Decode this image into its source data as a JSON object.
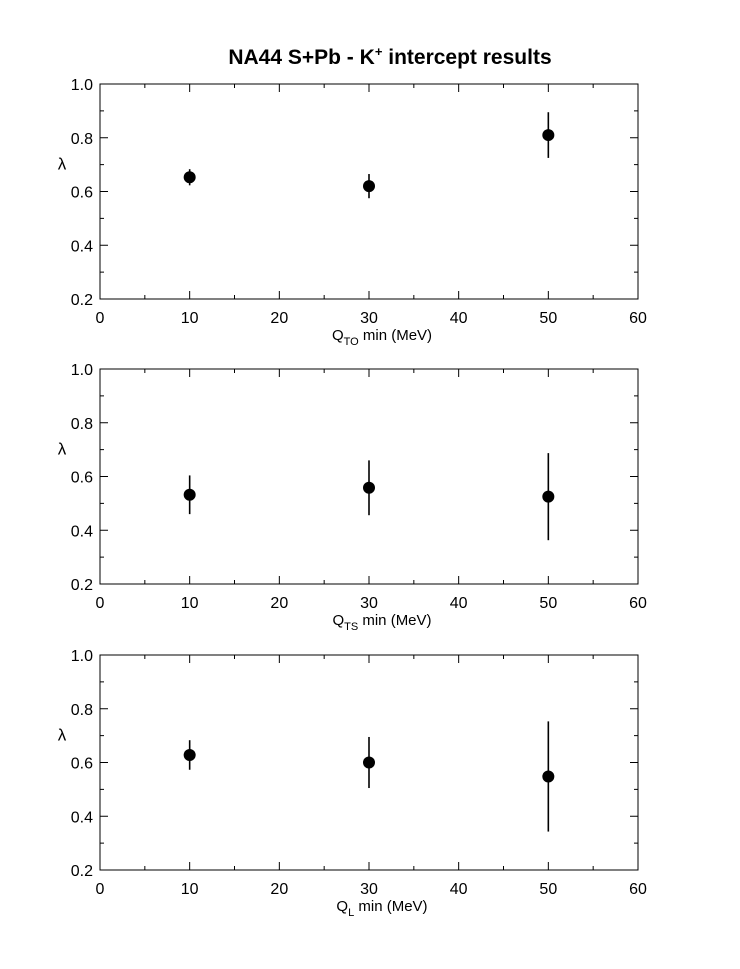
{
  "title": {
    "text": "NA44 S+Pb - K",
    "sup": "+",
    "suffix": " intercept results"
  },
  "chart_data": [
    {
      "type": "scatter",
      "xlabel": {
        "main": "Q",
        "sub": "TO",
        "rest": " min (MeV)"
      },
      "ylabel": "λ",
      "xlim": [
        0,
        60
      ],
      "ylim": [
        0.2,
        1.0
      ],
      "xticks": [
        0,
        10,
        20,
        30,
        40,
        50,
        60
      ],
      "xtick_labels": [
        "0",
        "10",
        "20",
        "30",
        "40",
        "50",
        "60"
      ],
      "yticks": [
        0.2,
        0.4,
        0.6,
        0.8,
        1.0
      ],
      "ytick_labels": [
        "0.2",
        "0.4",
        "0.6",
        "0.8",
        "1.0"
      ],
      "grid": false,
      "points": [
        {
          "x": 10,
          "y": 0.653,
          "err": 0.03
        },
        {
          "x": 30,
          "y": 0.62,
          "err": 0.045
        },
        {
          "x": 50,
          "y": 0.81,
          "err": 0.085
        }
      ]
    },
    {
      "type": "scatter",
      "xlabel": {
        "main": "Q",
        "sub": "TS",
        "rest": " min (MeV)"
      },
      "ylabel": "λ",
      "xlim": [
        0,
        60
      ],
      "ylim": [
        0.2,
        1.0
      ],
      "xticks": [
        0,
        10,
        20,
        30,
        40,
        50,
        60
      ],
      "xtick_labels": [
        "0",
        "10",
        "20",
        "30",
        "40",
        "50",
        "60"
      ],
      "yticks": [
        0.2,
        0.4,
        0.6,
        0.8,
        1.0
      ],
      "ytick_labels": [
        "0.2",
        "0.4",
        "0.6",
        "0.8",
        "1.0"
      ],
      "grid": false,
      "points": [
        {
          "x": 10,
          "y": 0.532,
          "err": 0.072
        },
        {
          "x": 30,
          "y": 0.558,
          "err": 0.102
        },
        {
          "x": 50,
          "y": 0.525,
          "err": 0.162
        }
      ]
    },
    {
      "type": "scatter",
      "xlabel": {
        "main": "Q",
        "sub": "L",
        "rest": " min (MeV)"
      },
      "ylabel": "λ",
      "xlim": [
        0,
        60
      ],
      "ylim": [
        0.2,
        1.0
      ],
      "xticks": [
        0,
        10,
        20,
        30,
        40,
        50,
        60
      ],
      "xtick_labels": [
        "0",
        "10",
        "20",
        "30",
        "40",
        "50",
        "60"
      ],
      "yticks": [
        0.2,
        0.4,
        0.6,
        0.8,
        1.0
      ],
      "ytick_labels": [
        "0.2",
        "0.4",
        "0.6",
        "0.8",
        "1.0"
      ],
      "grid": false,
      "points": [
        {
          "x": 10,
          "y": 0.628,
          "err": 0.055
        },
        {
          "x": 30,
          "y": 0.6,
          "err": 0.095
        },
        {
          "x": 50,
          "y": 0.548,
          "err": 0.205
        }
      ]
    }
  ]
}
